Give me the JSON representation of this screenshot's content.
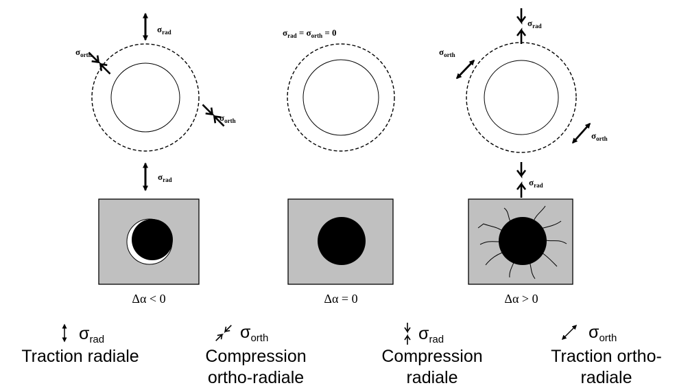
{
  "labels": {
    "sigma": "σ",
    "rad": "rad",
    "orth": "orth",
    "equal_sign": "=",
    "equals_zero": "= 0"
  },
  "captions": {
    "left": "Δα < 0",
    "middle": "Δα = 0",
    "right": "Δα > 0"
  },
  "legend": [
    {
      "sub": "rad",
      "line1": "Traction radiale",
      "line2": ""
    },
    {
      "sub": "orth",
      "line1": "Compression",
      "line2": "ortho-radiale"
    },
    {
      "sub": "rad",
      "line1": "Compression",
      "line2": "radiale"
    },
    {
      "sub": "orth",
      "line1": "Traction ortho-",
      "line2": "radiale"
    }
  ],
  "colors": {
    "box_fill": "#c0c0c0",
    "inclusion": "#000000",
    "stroke": "#000000"
  },
  "icons": [
    "double-arrow-icon",
    "compression-fork-icon"
  ]
}
